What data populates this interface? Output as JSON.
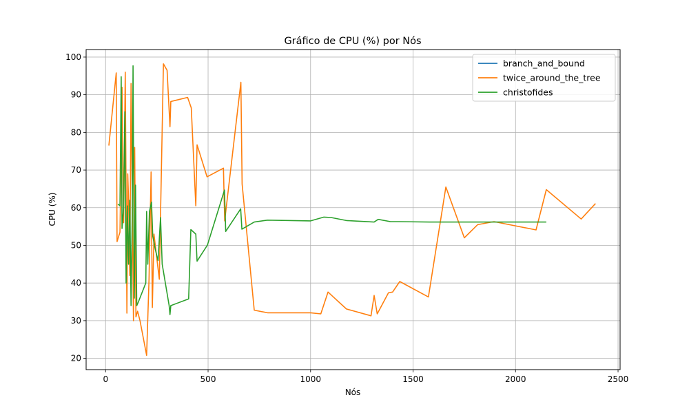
{
  "chart_data": {
    "type": "line",
    "title": "Gráfico de CPU (%) por Nós",
    "xlabel": "Nós",
    "ylabel": "CPU (%)",
    "xlim": [
      -95,
      2510
    ],
    "ylim": [
      17,
      102
    ],
    "xticks": [
      0,
      500,
      1000,
      1500,
      2000,
      2500
    ],
    "yticks": [
      20,
      30,
      40,
      50,
      60,
      70,
      80,
      90,
      100
    ],
    "grid": true,
    "legend_position": "top-right",
    "series": [
      {
        "name": "branch_and_bound",
        "color": "#1f77b4",
        "points": []
      },
      {
        "name": "twice_around_the_tree",
        "color": "#ff7f0e",
        "points": [
          [
            16,
            76.5
          ],
          [
            52,
            95.8
          ],
          [
            56,
            51
          ],
          [
            70,
            53.5
          ],
          [
            80,
            92
          ],
          [
            88,
            56
          ],
          [
            96,
            96
          ],
          [
            104,
            32
          ],
          [
            108,
            69
          ],
          [
            112,
            62
          ],
          [
            118,
            42
          ],
          [
            124,
            93
          ],
          [
            130,
            64
          ],
          [
            136,
            30
          ],
          [
            142,
            76
          ],
          [
            148,
            31
          ],
          [
            156,
            32.5
          ],
          [
            168,
            30
          ],
          [
            200,
            20.8
          ],
          [
            212,
            41
          ],
          [
            222,
            69.5
          ],
          [
            228,
            33.5
          ],
          [
            236,
            53
          ],
          [
            248,
            47.5
          ],
          [
            262,
            41
          ],
          [
            282,
            98.2
          ],
          [
            300,
            96.5
          ],
          [
            314,
            81.5
          ],
          [
            318,
            88.2
          ],
          [
            400,
            89.3
          ],
          [
            418,
            86.5
          ],
          [
            440,
            60.5
          ],
          [
            446,
            76.7
          ],
          [
            495,
            68.2
          ],
          [
            575,
            70.5
          ],
          [
            581,
            56.5
          ],
          [
            660,
            93.3
          ],
          [
            666,
            66.3
          ],
          [
            725,
            32.8
          ],
          [
            790,
            32.1
          ],
          [
            1000,
            32.1
          ],
          [
            1050,
            31.8
          ],
          [
            1085,
            37.6
          ],
          [
            1175,
            33.1
          ],
          [
            1295,
            31.3
          ],
          [
            1310,
            36.7
          ],
          [
            1325,
            31.8
          ],
          [
            1380,
            37.4
          ],
          [
            1400,
            37.6
          ],
          [
            1435,
            40.4
          ],
          [
            1575,
            36.3
          ],
          [
            1660,
            65.5
          ],
          [
            1750,
            52
          ],
          [
            1815,
            55.5
          ],
          [
            1895,
            56.3
          ],
          [
            2100,
            54.1
          ],
          [
            2150,
            64.8
          ],
          [
            2320,
            57
          ],
          [
            2390,
            61.1
          ]
        ]
      },
      {
        "name": "christofides",
        "color": "#2ca02c",
        "points": [
          [
            60,
            61
          ],
          [
            70,
            60.5
          ],
          [
            76,
            94.8
          ],
          [
            80,
            54.5
          ],
          [
            88,
            60
          ],
          [
            94,
            85.5
          ],
          [
            100,
            40
          ],
          [
            106,
            60.5
          ],
          [
            112,
            45
          ],
          [
            118,
            62
          ],
          [
            124,
            34
          ],
          [
            130,
            58
          ],
          [
            134,
            97.7
          ],
          [
            140,
            36
          ],
          [
            146,
            66
          ],
          [
            152,
            34
          ],
          [
            160,
            35
          ],
          [
            196,
            40
          ],
          [
            200,
            59
          ],
          [
            206,
            45
          ],
          [
            214,
            59
          ],
          [
            224,
            61.5
          ],
          [
            230,
            52.5
          ],
          [
            242,
            49
          ],
          [
            256,
            46
          ],
          [
            268,
            57.4
          ],
          [
            276,
            45
          ],
          [
            310,
            34
          ],
          [
            314,
            31.6
          ],
          [
            318,
            34
          ],
          [
            405,
            35.8
          ],
          [
            416,
            54.2
          ],
          [
            440,
            53
          ],
          [
            446,
            45.8
          ],
          [
            497,
            50.1
          ],
          [
            580,
            64.7
          ],
          [
            586,
            53.7
          ],
          [
            659,
            59.7
          ],
          [
            665,
            54.3
          ],
          [
            725,
            56.2
          ],
          [
            790,
            56.7
          ],
          [
            1000,
            56.5
          ],
          [
            1065,
            57.5
          ],
          [
            1100,
            57.4
          ],
          [
            1175,
            56.6
          ],
          [
            1310,
            56.2
          ],
          [
            1330,
            56.9
          ],
          [
            1390,
            56.3
          ],
          [
            1430,
            56.3
          ],
          [
            1580,
            56.2
          ],
          [
            1700,
            56.2
          ],
          [
            1880,
            56.2
          ],
          [
            2100,
            56.2
          ],
          [
            2150,
            56.2
          ]
        ]
      }
    ]
  }
}
